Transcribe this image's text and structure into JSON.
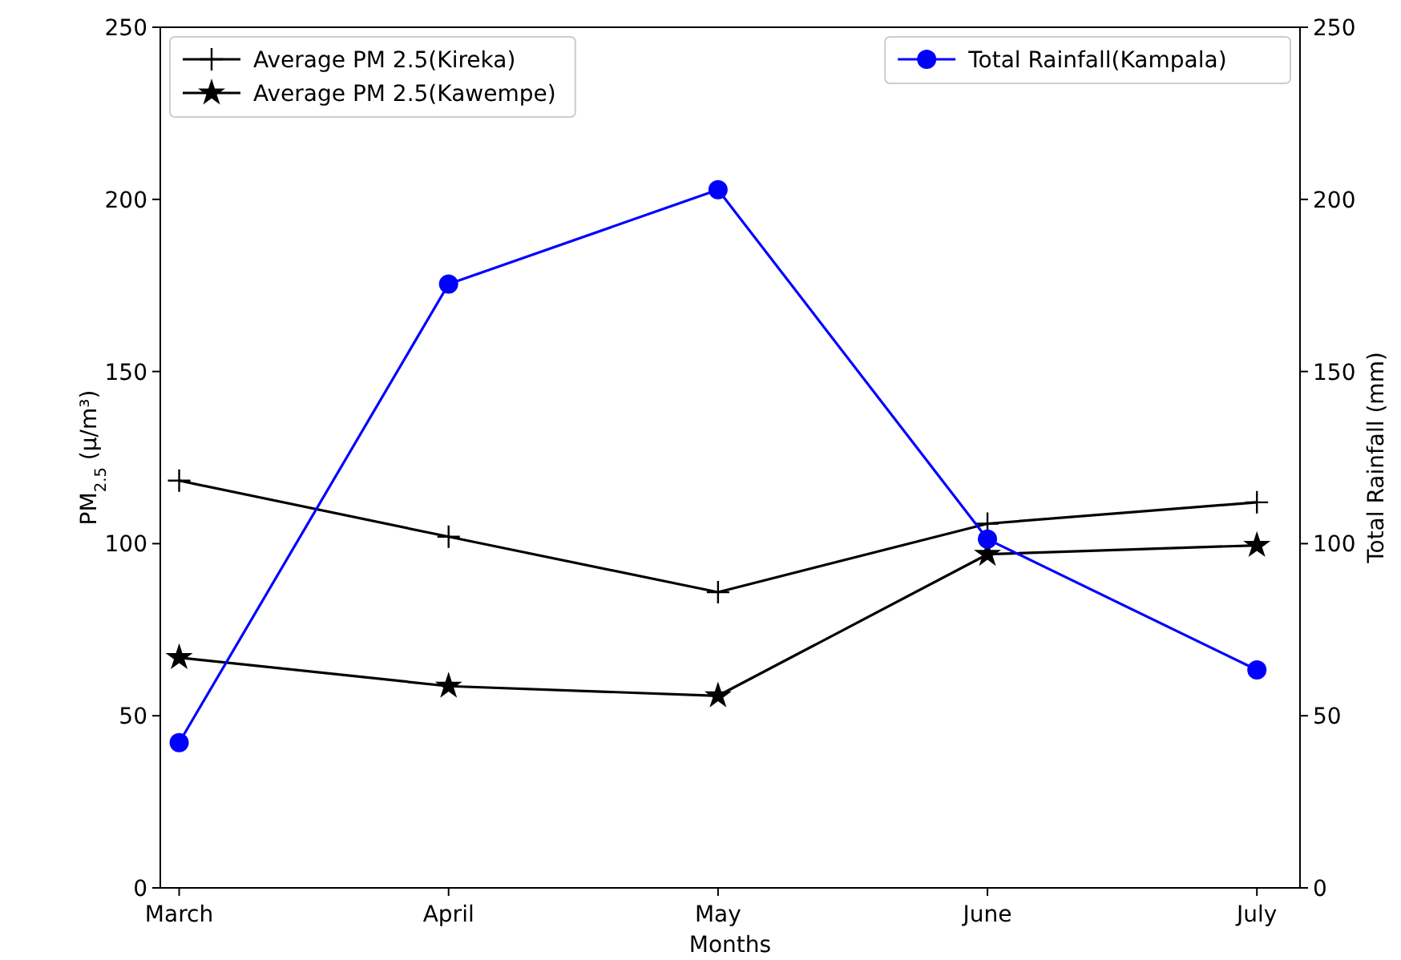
{
  "chart_data": {
    "type": "line",
    "xlabel": "Months",
    "ylabel": "PM$_{2.5}$ (µ/m³)",
    "y2label": "Total Rainfall (mm)",
    "categories": [
      "March",
      "April",
      "May",
      "June",
      "July"
    ],
    "series": [
      {
        "name": "Average PM 2.5(Kireka)",
        "color": "#000000",
        "marker": "cross",
        "values": [
          118.3,
          102,
          85.9,
          105.8,
          112
        ]
      },
      {
        "name": "Average PM 2.5(Kawempe)",
        "color": "#000000",
        "marker": "star",
        "values": [
          66.9,
          58.6,
          55.8,
          96.9,
          99.5
        ]
      },
      {
        "name": "Total Rainfall(Kampala)",
        "color": "#0000ff",
        "marker": "circle",
        "axis": "y2",
        "values": [
          42.2,
          175.4,
          202.8,
          101.3,
          63.3
        ]
      }
    ],
    "ylim": [
      0,
      250
    ],
    "yticks": [
      0,
      50,
      100,
      150,
      200,
      250
    ],
    "y2lim": [
      0,
      250
    ],
    "y2ticks": [
      0,
      50,
      100,
      150,
      200,
      250
    ],
    "legend": "top",
    "grid": false,
    "line_style": "solid"
  }
}
